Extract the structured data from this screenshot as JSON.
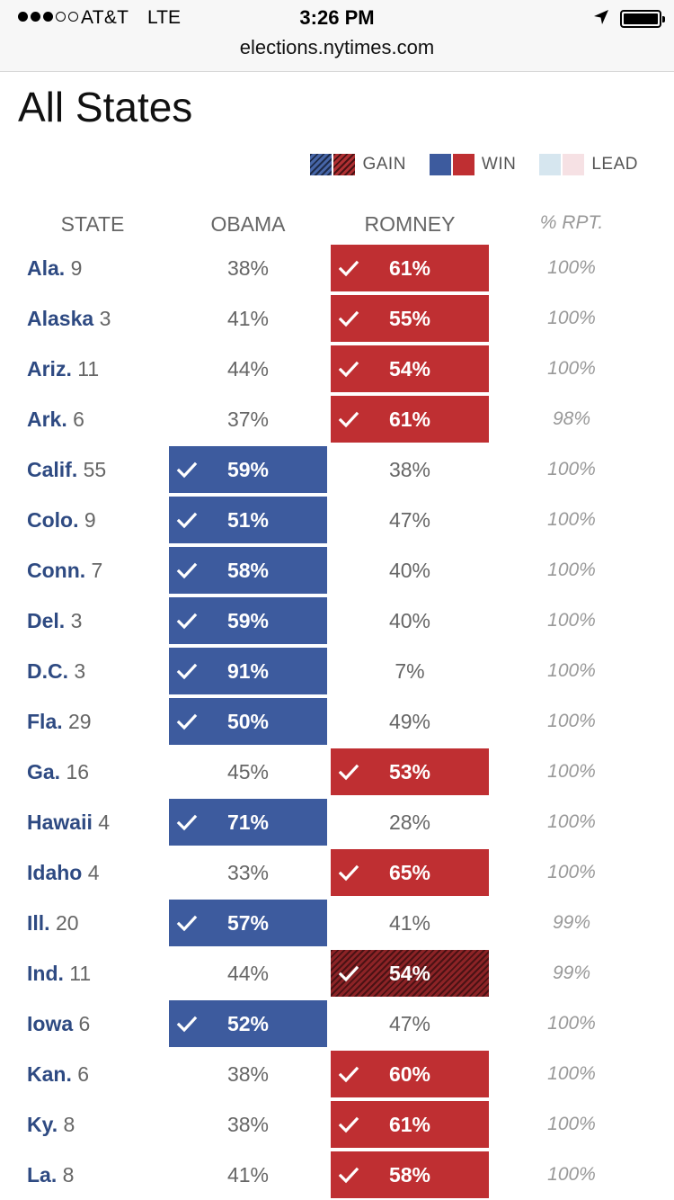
{
  "status_bar": {
    "carrier": "AT&T",
    "network": "LTE",
    "time": "3:26 PM"
  },
  "browser": {
    "url": "elections.nytimes.com"
  },
  "page": {
    "title": "All States"
  },
  "legend": {
    "gain": "GAIN",
    "win": "WIN",
    "lead": "LEAD"
  },
  "colors": {
    "obama_win": "#3d5b9e",
    "romney_win": "#bf2f32",
    "romney_gain": "#8c2326",
    "obama_gain": "#2a3d66",
    "obama_lead": "#d6e6ef",
    "romney_lead": "#f6e1e4",
    "state_name": "#2e4a82"
  },
  "table": {
    "headers": {
      "state": "STATE",
      "obama": "OBAMA",
      "romney": "ROMNEY",
      "reported": "% RPT."
    },
    "rows": [
      {
        "state": "Ala.",
        "votes": "9",
        "obama": "38%",
        "romney": "61%",
        "winner": "romney",
        "gain": false,
        "reported": "100%"
      },
      {
        "state": "Alaska",
        "votes": "3",
        "obama": "41%",
        "romney": "55%",
        "winner": "romney",
        "gain": false,
        "reported": "100%"
      },
      {
        "state": "Ariz.",
        "votes": "11",
        "obama": "44%",
        "romney": "54%",
        "winner": "romney",
        "gain": false,
        "reported": "100%"
      },
      {
        "state": "Ark.",
        "votes": "6",
        "obama": "37%",
        "romney": "61%",
        "winner": "romney",
        "gain": false,
        "reported": "98%"
      },
      {
        "state": "Calif.",
        "votes": "55",
        "obama": "59%",
        "romney": "38%",
        "winner": "obama",
        "gain": false,
        "reported": "100%"
      },
      {
        "state": "Colo.",
        "votes": "9",
        "obama": "51%",
        "romney": "47%",
        "winner": "obama",
        "gain": false,
        "reported": "100%"
      },
      {
        "state": "Conn.",
        "votes": "7",
        "obama": "58%",
        "romney": "40%",
        "winner": "obama",
        "gain": false,
        "reported": "100%"
      },
      {
        "state": "Del.",
        "votes": "3",
        "obama": "59%",
        "romney": "40%",
        "winner": "obama",
        "gain": false,
        "reported": "100%"
      },
      {
        "state": "D.C.",
        "votes": "3",
        "obama": "91%",
        "romney": "7%",
        "winner": "obama",
        "gain": false,
        "reported": "100%"
      },
      {
        "state": "Fla.",
        "votes": "29",
        "obama": "50%",
        "romney": "49%",
        "winner": "obama",
        "gain": false,
        "reported": "100%"
      },
      {
        "state": "Ga.",
        "votes": "16",
        "obama": "45%",
        "romney": "53%",
        "winner": "romney",
        "gain": false,
        "reported": "100%"
      },
      {
        "state": "Hawaii",
        "votes": "4",
        "obama": "71%",
        "romney": "28%",
        "winner": "obama",
        "gain": false,
        "reported": "100%"
      },
      {
        "state": "Idaho",
        "votes": "4",
        "obama": "33%",
        "romney": "65%",
        "winner": "romney",
        "gain": false,
        "reported": "100%"
      },
      {
        "state": "Ill.",
        "votes": "20",
        "obama": "57%",
        "romney": "41%",
        "winner": "obama",
        "gain": false,
        "reported": "99%"
      },
      {
        "state": "Ind.",
        "votes": "11",
        "obama": "44%",
        "romney": "54%",
        "winner": "romney",
        "gain": true,
        "reported": "99%"
      },
      {
        "state": "Iowa",
        "votes": "6",
        "obama": "52%",
        "romney": "47%",
        "winner": "obama",
        "gain": false,
        "reported": "100%"
      },
      {
        "state": "Kan.",
        "votes": "6",
        "obama": "38%",
        "romney": "60%",
        "winner": "romney",
        "gain": false,
        "reported": "100%"
      },
      {
        "state": "Ky.",
        "votes": "8",
        "obama": "38%",
        "romney": "61%",
        "winner": "romney",
        "gain": false,
        "reported": "100%"
      },
      {
        "state": "La.",
        "votes": "8",
        "obama": "41%",
        "romney": "58%",
        "winner": "romney",
        "gain": false,
        "reported": "100%"
      }
    ]
  }
}
